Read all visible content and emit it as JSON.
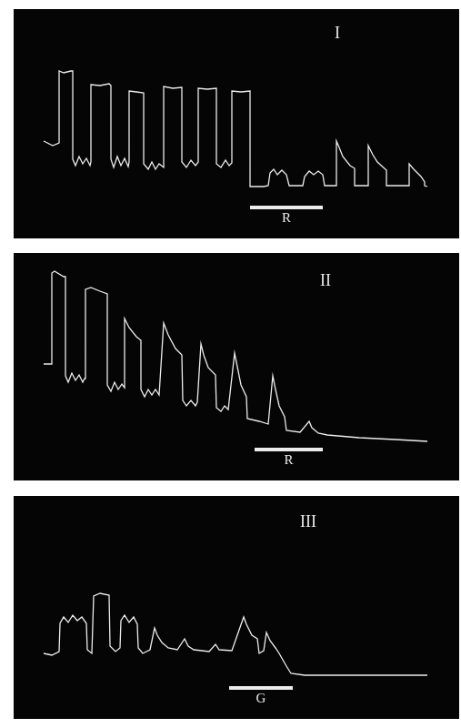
{
  "chart_data": [
    {
      "type": "line",
      "title": "I",
      "color": "#ececec",
      "grid": false,
      "tick_labels": false,
      "xlim": [
        0,
        490
      ],
      "ylim": [
        0,
        252
      ],
      "x": [
        33,
        43,
        50,
        50,
        55,
        63,
        65,
        65,
        68,
        72,
        76,
        80,
        84,
        85,
        85,
        95,
        105,
        107,
        107,
        110,
        114,
        118,
        122,
        126,
        127,
        127,
        135,
        143,
        143,
        148,
        152,
        156,
        160,
        165,
        165,
        175,
        185,
        185,
        190,
        195,
        200,
        203,
        203,
        213,
        223,
        223,
        228,
        233,
        237,
        240,
        240,
        250,
        260,
        260,
        275,
        280,
        282,
        286,
        290,
        295,
        300,
        303,
        318,
        320,
        325,
        330,
        335,
        340,
        342,
        355,
        355,
        358,
        362,
        370,
        375,
        375,
        390,
        390,
        395,
        400,
        410,
        410,
        435,
        435,
        440,
        448,
        452,
        452,
        455
      ],
      "values": [
        107,
        102,
        105,
        184,
        182,
        184,
        184,
        87,
        80,
        90,
        82,
        88,
        80,
        84,
        169,
        168,
        170,
        168,
        87,
        78,
        90,
        80,
        88,
        79,
        84,
        162,
        161,
        160,
        82,
        76,
        84,
        76,
        82,
        78,
        167,
        165,
        166,
        84,
        78,
        86,
        80,
        84,
        165,
        164,
        165,
        82,
        78,
        86,
        80,
        83,
        162,
        161,
        162,
        57,
        57,
        58,
        72,
        76,
        70,
        75,
        70,
        58,
        58,
        68,
        74,
        70,
        74,
        70,
        58,
        58,
        107,
        100,
        90,
        80,
        77,
        58,
        58,
        102,
        92,
        84,
        75,
        58,
        58,
        82,
        76,
        68,
        62,
        58,
        57
      ],
      "annotations": [
        {
          "text": "R",
          "x": [
            260,
            340
          ]
        }
      ]
    },
    {
      "type": "line",
      "title": "II",
      "color": "#ececec",
      "grid": false,
      "tick_labels": false,
      "xlim": [
        0,
        490
      ],
      "ylim": [
        0,
        250
      ],
      "x": [
        33,
        42,
        42,
        45,
        55,
        57,
        57,
        60,
        64,
        68,
        72,
        76,
        78,
        79,
        79,
        85,
        95,
        103,
        103,
        107,
        111,
        115,
        119,
        122,
        122,
        127,
        135,
        140,
        140,
        144,
        148,
        152,
        156,
        160,
        165,
        170,
        178,
        185,
        186,
        190,
        195,
        200,
        202,
        206,
        209,
        214,
        222,
        223,
        228,
        232,
        236,
        243,
        246,
        250,
        256,
        257,
        270,
        280,
        285,
        288,
        292,
        298,
        300,
        315,
        325,
        328,
        335,
        345,
        380,
        420,
        455
      ],
      "values": [
        128,
        128,
        228,
        230,
        224,
        224,
        115,
        108,
        118,
        110,
        116,
        108,
        112,
        112,
        210,
        212,
        208,
        205,
        105,
        98,
        108,
        100,
        106,
        102,
        178,
        168,
        158,
        154,
        100,
        92,
        100,
        94,
        100,
        94,
        173,
        160,
        145,
        138,
        88,
        82,
        88,
        82,
        86,
        150,
        138,
        124,
        116,
        80,
        76,
        82,
        78,
        140,
        125,
        105,
        92,
        68,
        65,
        62,
        115,
        100,
        82,
        70,
        55,
        53,
        65,
        58,
        52,
        50,
        47,
        45,
        43
      ],
      "annotations": [
        {
          "text": "R",
          "x": [
            265,
            340
          ]
        }
      ]
    },
    {
      "type": "line",
      "title": "III",
      "color": "#ececec",
      "grid": false,
      "tick_labels": false,
      "xlim": [
        0,
        490
      ],
      "ylim": [
        0,
        245
      ],
      "x": [
        33,
        42,
        50,
        51,
        55,
        60,
        65,
        70,
        75,
        80,
        81,
        86,
        88,
        95,
        105,
        106,
        112,
        117,
        118,
        122,
        127,
        132,
        136,
        137,
        142,
        150,
        155,
        158,
        163,
        170,
        180,
        188,
        192,
        198,
        215,
        222,
        226,
        240,
        253,
        256,
        262,
        268,
        270,
        275,
        278,
        282,
        288,
        292,
        300,
        305,
        320,
        350,
        400,
        455
      ],
      "values": [
        72,
        70,
        74,
        105,
        112,
        106,
        114,
        108,
        112,
        105,
        76,
        72,
        135,
        138,
        136,
        80,
        74,
        78,
        108,
        114,
        106,
        112,
        104,
        78,
        72,
        76,
        100,
        92,
        84,
        78,
        76,
        88,
        80,
        76,
        74,
        82,
        76,
        75,
        112,
        104,
        92,
        88,
        72,
        75,
        95,
        86,
        78,
        72,
        58,
        50,
        48,
        48,
        48,
        48
      ],
      "annotations": [
        {
          "text": "G",
          "x": [
            237,
            307
          ]
        }
      ]
    }
  ]
}
